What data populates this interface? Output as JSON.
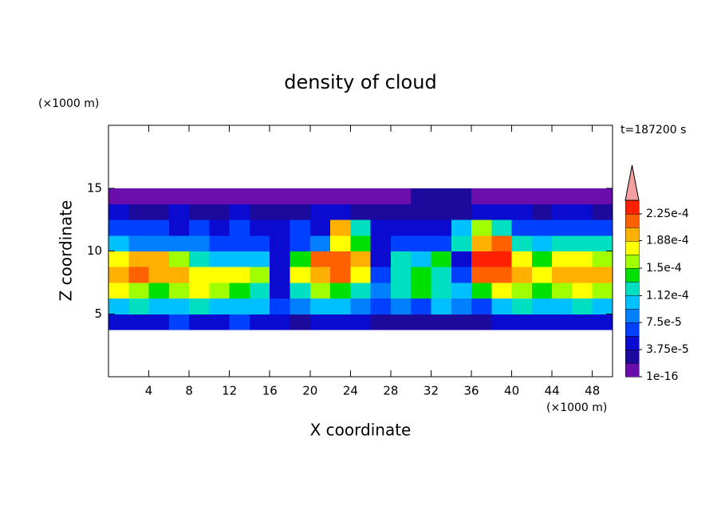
{
  "chart_data": {
    "type": "contour",
    "title": "density of cloud",
    "annotation": "t=187200 s",
    "x_label": "X coordinate",
    "y_label": "Z coordinate",
    "x_unit": "(×1000 m)",
    "y_unit": "(×1000 m)",
    "xlim": [
      0,
      50
    ],
    "ylim": [
      0,
      20
    ],
    "xticks": [
      4,
      8,
      12,
      16,
      20,
      24,
      28,
      32,
      36,
      40,
      44,
      48
    ],
    "yticks": [
      5,
      10,
      15
    ],
    "x": [
      1,
      3,
      5,
      7,
      9,
      11,
      13,
      15,
      17,
      19,
      21,
      23,
      25,
      27,
      29,
      31,
      33,
      35,
      37,
      39,
      41,
      43,
      45,
      47,
      49
    ],
    "y": [
      4.375,
      5.625,
      6.875,
      8.125,
      9.375,
      10.625,
      11.875,
      13.125,
      14.375
    ],
    "z": [
      [
        4e-05,
        5e-05,
        5e-05,
        6e-05,
        5e-05,
        5e-05,
        6e-05,
        5e-05,
        4e-05,
        3e-05,
        4e-05,
        5e-05,
        4e-05,
        3e-05,
        3e-05,
        2e-05,
        3e-05,
        2e-05,
        3e-05,
        4e-05,
        5e-05,
        5e-05,
        5e-05,
        4e-05,
        4e-05
      ],
      [
        0.00011,
        0.00012,
        0.00011,
        0.00011,
        0.00012,
        0.00011,
        0.00011,
        0.0001,
        6e-05,
        8e-05,
        0.00011,
        0.0001,
        9e-05,
        6e-05,
        8e-05,
        7e-05,
        0.0001,
        8e-05,
        7e-05,
        0.00011,
        0.00012,
        0.00011,
        0.00011,
        0.00012,
        0.00011
      ],
      [
        0.00017,
        0.00016,
        0.00015,
        0.00016,
        0.00017,
        0.00016,
        0.00014,
        0.00013,
        5e-05,
        0.00012,
        0.00016,
        0.00015,
        0.00013,
        9e-05,
        0.00013,
        0.00014,
        0.00012,
        0.0001,
        0.00015,
        0.00017,
        0.00016,
        0.00015,
        0.00016,
        0.00017,
        0.00016
      ],
      [
        0.0002,
        0.00021,
        0.0002,
        0.00019,
        0.00018,
        0.00017,
        0.00018,
        0.00016,
        4e-05,
        0.00017,
        0.0002,
        0.00021,
        0.00018,
        6e-05,
        0.00012,
        0.00015,
        0.00013,
        7e-05,
        0.00021,
        0.00022,
        0.00019,
        0.00018,
        0.0002,
        0.0002,
        0.00019
      ],
      [
        0.00018,
        0.00019,
        0.0002,
        0.00016,
        0.00013,
        0.00011,
        0.0001,
        0.0001,
        4e-05,
        0.00014,
        0.00021,
        0.00022,
        0.0002,
        4e-05,
        0.00013,
        0.00011,
        0.00014,
        5e-05,
        0.00023,
        0.00024,
        0.00017,
        0.00015,
        0.00017,
        0.00018,
        0.00016
      ],
      [
        0.0001,
        9e-05,
        8e-05,
        9e-05,
        8e-05,
        7e-05,
        7e-05,
        6e-05,
        5e-05,
        6e-05,
        8e-05,
        0.00018,
        0.00014,
        5e-05,
        6e-05,
        7e-05,
        6e-05,
        0.00012,
        0.0002,
        0.00021,
        0.00012,
        0.00011,
        0.00012,
        0.00013,
        0.00012
      ],
      [
        7e-05,
        6e-05,
        6e-05,
        5e-05,
        6e-05,
        5e-05,
        6e-05,
        5e-05,
        5e-05,
        6e-05,
        5e-05,
        0.00019,
        0.00012,
        4e-05,
        4e-05,
        4e-05,
        5e-05,
        0.0001,
        0.00016,
        0.00013,
        7e-05,
        7e-05,
        6e-05,
        7e-05,
        6e-05
      ],
      [
        4e-05,
        3e-05,
        3e-05,
        4e-05,
        3e-05,
        3e-05,
        4e-05,
        3e-05,
        3e-05,
        3e-05,
        4e-05,
        4e-05,
        3e-05,
        2e-05,
        2e-05,
        2e-05,
        3e-05,
        3e-05,
        4e-05,
        4e-05,
        4e-05,
        3e-05,
        4e-05,
        4e-05,
        3e-05
      ],
      [
        1e-05,
        1e-05,
        1e-05,
        1e-05,
        1e-05,
        1e-05,
        1e-05,
        1e-05,
        1e-05,
        1e-05,
        1e-05,
        1e-05,
        1e-05,
        1e-05,
        1e-05,
        2e-05,
        2e-05,
        2e-05,
        1e-05,
        1e-05,
        1e-05,
        1e-05,
        1e-05,
        1e-05,
        1e-05
      ]
    ],
    "colorbar": {
      "clim": [
        1e-16,
        0.00024375
      ],
      "ticks": [
        {
          "value": 1e-16,
          "label": "1e-16"
        },
        {
          "value": 3.75e-05,
          "label": "3.75e-5"
        },
        {
          "value": 7.5e-05,
          "label": "7.5e-5"
        },
        {
          "value": 0.000112,
          "label": "1.12e-4"
        },
        {
          "value": 0.00015,
          "label": "1.5e-4"
        },
        {
          "value": 0.000188,
          "label": "1.88e-4"
        },
        {
          "value": 0.000225,
          "label": "2.25e-4"
        }
      ],
      "colors": [
        "#6a0dad",
        "#1c0a9c",
        "#0a0ad0",
        "#0040ff",
        "#0080ff",
        "#00c0ff",
        "#00e0c0",
        "#00e000",
        "#a0ff00",
        "#ffff00",
        "#ffb000",
        "#ff6000",
        "#ff2000"
      ],
      "extend_color": "#f4a0a0"
    }
  }
}
